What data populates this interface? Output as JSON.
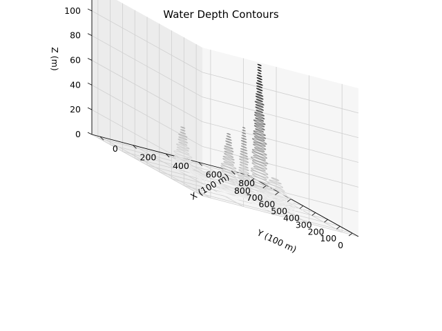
{
  "chart_data": {
    "type": "3d_contour",
    "title": "Water Depth Contours",
    "xlabel": "X (100 m)",
    "ylabel": "Y (100 m)",
    "zlabel": "Z (m)",
    "xlim": [
      -50,
      900
    ],
    "ylim": [
      -50,
      850
    ],
    "zlim": [
      0,
      120
    ],
    "x_ticks": [
      0,
      200,
      400,
      600,
      800
    ],
    "y_ticks": [
      0,
      100,
      200,
      300,
      400,
      500,
      600,
      700,
      800
    ],
    "z_ticks": [
      0,
      20,
      40,
      60,
      80,
      100
    ],
    "grid": true,
    "colormap": "gray_r",
    "peaks": [
      {
        "x": 350,
        "y": 20,
        "height": 117,
        "sx": 25,
        "sy": 30
      },
      {
        "x": 330,
        "y": 120,
        "height": 60,
        "sx": 20,
        "sy": 22
      },
      {
        "x": 220,
        "y": 470,
        "height": 37,
        "sx": 30,
        "sy": 30
      },
      {
        "x": 230,
        "y": 110,
        "height": 52,
        "sx": 30,
        "sy": 30
      },
      {
        "x": 520,
        "y": 120,
        "height": 25,
        "sx": 60,
        "sy": 60
      },
      {
        "x": 680,
        "y": 300,
        "height": 12,
        "sx": 60,
        "sy": 60
      },
      {
        "x": 540,
        "y": 230,
        "height": 10,
        "sx": 50,
        "sy": 50
      }
    ]
  }
}
